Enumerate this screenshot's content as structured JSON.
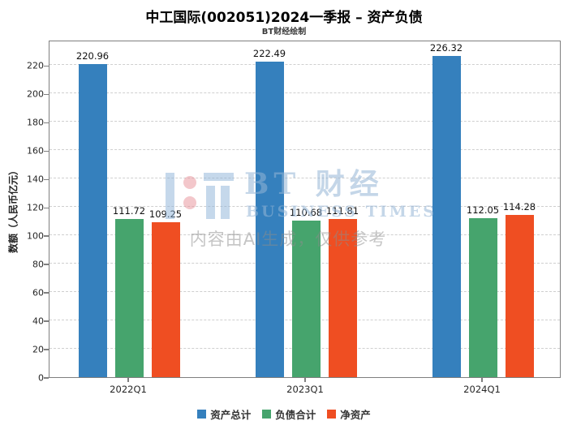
{
  "subtitle": "BT财经绘制",
  "watermark": {
    "brand_cn": "BT 财经",
    "brand_en": "BUSINESS TIMES",
    "disclaimer": "内容由AI生成，仅供参考"
  },
  "chart_data": {
    "type": "bar",
    "title": "中工国际(002051)2024一季报 – 资产负债",
    "categories": [
      "2022Q1",
      "2023Q1",
      "2024Q1"
    ],
    "series": [
      {
        "name": "资产总计",
        "color": "#3580bd",
        "values": [
          220.96,
          222.49,
          226.32
        ]
      },
      {
        "name": "负债合计",
        "color": "#46a46d",
        "values": [
          111.72,
          110.68,
          112.05
        ]
      },
      {
        "name": "净资产",
        "color": "#ef4e22",
        "values": [
          109.25,
          111.81,
          114.28
        ]
      }
    ],
    "xlabel": "",
    "ylabel": "数额（人民币亿元）",
    "ylim": [
      0,
      238
    ],
    "yticks": [
      0,
      20,
      40,
      60,
      80,
      100,
      120,
      140,
      160,
      180,
      200,
      220
    ],
    "grid": true,
    "grid_style": "dashed",
    "value_labels": true,
    "legend_position": "bottom"
  }
}
